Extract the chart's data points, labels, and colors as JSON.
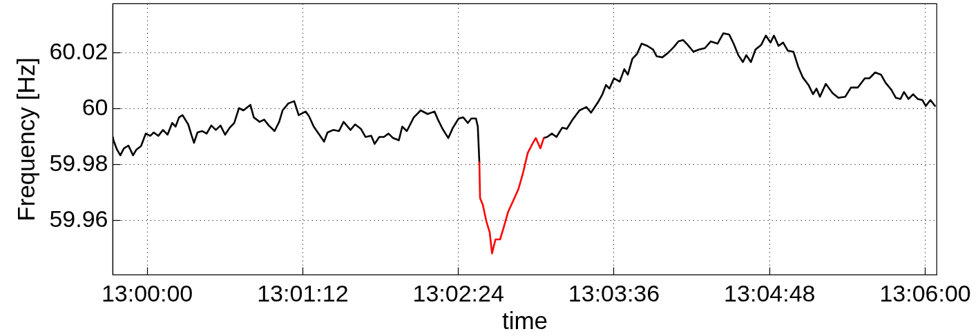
{
  "chart_data": {
    "type": "line",
    "xlabel": "time",
    "ylabel": "Frequency [Hz]",
    "x": [
      12.99563,
      12.99571,
      12.99616,
      12.9966,
      12.99705,
      12.99764,
      12.99823,
      12.99867,
      12.99926,
      12.99986,
      13.00044,
      13.00089,
      13.00148,
      13.00208,
      13.00266,
      13.00326,
      13.0037,
      13.00414,
      13.00459,
      13.00532,
      13.00577,
      13.00607,
      13.00651,
      13.0071,
      13.00769,
      13.00829,
      13.00887,
      13.00947,
      13.01006,
      13.01065,
      13.01124,
      13.01184,
      13.01242,
      13.01331,
      13.01375,
      13.0145,
      13.01508,
      13.01568,
      13.01642,
      13.01701,
      13.01745,
      13.01819,
      13.01894,
      13.01952,
      13.02041,
      13.02085,
      13.02145,
      13.02218,
      13.02278,
      13.02322,
      13.02396,
      13.0247,
      13.02529,
      13.02618,
      13.02677,
      13.02751,
      13.0281,
      13.02884,
      13.02928,
      13.02988,
      13.03047,
      13.03106,
      13.03165,
      13.03239,
      13.03283,
      13.03342,
      13.03431,
      13.0352,
      13.03609,
      13.03697,
      13.03742,
      13.03801,
      13.03875,
      13.03934,
      13.04008,
      13.04067,
      13.04126,
      13.0417,
      13.0423,
      13.04254,
      13.04274,
      13.04283,
      13.04318,
      13.04363,
      13.04407,
      13.04437,
      13.04481,
      13.0454,
      13.04585,
      13.04644,
      13.04718,
      13.04777,
      13.04836,
      13.04895,
      13.04955,
      13.04999,
      13.05058,
      13.05102,
      13.05146,
      13.05206,
      13.05265,
      13.05339,
      13.05398,
      13.05472,
      13.05561,
      13.05649,
      13.05709,
      13.05798,
      13.05856,
      13.05901,
      13.05945,
      13.06004,
      13.06078,
      13.06137,
      13.06182,
      13.06241,
      13.063,
      13.06359,
      13.06433,
      13.06507,
      13.06552,
      13.06625,
      13.06699,
      13.06774,
      13.06832,
      13.06892,
      13.06951,
      13.07025,
      13.07098,
      13.07173,
      13.07247,
      13.07335,
      13.07409,
      13.07484,
      13.07542,
      13.07602,
      13.07661,
      13.07705,
      13.07764,
      13.07823,
      13.07897,
      13.07956,
      13.08016,
      13.0806,
      13.08119,
      13.08178,
      13.08238,
      13.08311,
      13.08371,
      13.08429,
      13.08504,
      13.08562,
      13.08607,
      13.08651,
      13.08726,
      13.08814,
      13.08888,
      13.08977,
      13.0905,
      13.09139,
      13.09228,
      13.09287,
      13.09361,
      13.09436,
      13.09494,
      13.09569,
      13.09627,
      13.09687,
      13.09731,
      13.0979,
      13.09849,
      13.09908,
      13.09968,
      13.10012,
      13.10071,
      13.1013
    ],
    "series": [
      {
        "color": "#000000",
        "values": [
          59.9897,
          59.9885,
          59.9852,
          59.9831,
          59.9856,
          59.9866,
          59.9831,
          59.9852,
          59.9864,
          59.9909,
          59.9901,
          59.9913,
          59.9901,
          59.9922,
          59.9905,
          59.9947,
          59.9934,
          59.9967,
          59.9975,
          59.9942,
          59.9901,
          59.9876,
          59.9913,
          59.9918,
          59.9909,
          59.9938,
          59.9922,
          59.9938,
          59.9905,
          59.993,
          59.9947,
          60.0,
          59.9992,
          60.0012,
          59.9967,
          59.9951,
          59.9959,
          59.9938,
          59.9918,
          59.9951,
          59.9992,
          60.0017,
          60.0025,
          59.9975,
          59.9988,
          59.9971,
          59.9934,
          59.9905,
          59.988,
          59.9913,
          59.9922,
          59.9918,
          59.9951,
          59.9922,
          59.9942,
          59.9926,
          59.9897,
          59.9901,
          59.9872,
          59.9897,
          59.9897,
          59.9909,
          59.9893,
          59.9885,
          59.9934,
          59.9918,
          59.9967,
          59.9992,
          59.9979,
          59.9988,
          59.9959,
          59.9926,
          59.9893,
          59.993,
          59.9963,
          59.9967,
          59.9947,
          59.9963,
          59.9963,
          59.9934,
          59.9806,
          null,
          null,
          null,
          null,
          null,
          null,
          null,
          null,
          null,
          null,
          null,
          null,
          null,
          null,
          null,
          null,
          59.9893,
          59.9897,
          59.9909,
          59.9897,
          59.993,
          59.9926,
          59.9959,
          59.9992,
          60.0004,
          59.9984,
          60.0021,
          60.005,
          60.0083,
          60.007,
          60.0107,
          60.0095,
          60.014,
          60.012,
          60.0177,
          60.0194,
          60.0231,
          60.0223,
          60.021,
          60.0186,
          60.0182,
          60.0198,
          60.0219,
          60.0239,
          60.0244,
          60.0227,
          60.0202,
          60.021,
          60.0215,
          60.0239,
          60.0231,
          60.0268,
          60.0264,
          60.0231,
          60.019,
          60.0165,
          60.019,
          60.0165,
          60.021,
          60.0227,
          60.026,
          60.0235,
          60.026,
          60.0223,
          60.0235,
          60.0206,
          60.0202,
          60.0149,
          60.0111,
          60.0083,
          60.005,
          60.007,
          60.0041,
          60.0087,
          60.0054,
          60.0037,
          60.0041,
          60.0074,
          60.0074,
          60.0107,
          60.0107,
          60.0128,
          60.012,
          60.0091,
          60.0066,
          60.0037,
          60.0033,
          60.0058,
          60.0033,
          60.005,
          60.0033,
          60.0029,
          60.0008,
          60.0029,
          60.0008
        ]
      },
      {
        "color": "#ff0000",
        "x": [
          13.04274,
          13.04283,
          13.04318,
          13.04363,
          13.04407,
          13.04437,
          13.04481,
          13.0454,
          13.04585,
          13.04644,
          13.04718,
          13.04777,
          13.04836,
          13.04895,
          13.04955,
          13.04999,
          13.05058,
          13.05102
        ],
        "values": [
          59.9806,
          59.9678,
          59.9654,
          59.9596,
          59.9555,
          59.948,
          59.953,
          59.953,
          59.9571,
          59.9629,
          59.9674,
          59.9711,
          59.9769,
          59.9839,
          59.9872,
          59.9893,
          59.9856,
          59.9893
        ]
      }
    ],
    "xlim": [
      12.9956,
      13.1015
    ],
    "ylim": [
      59.9404,
      60.0375
    ],
    "xticks": [
      {
        "value": 13,
        "label": "13:00:00"
      },
      {
        "value": 13.02,
        "label": "13:01:12"
      },
      {
        "value": 13.04,
        "label": "13:02:24"
      },
      {
        "value": 13.06,
        "label": "13:03:36"
      },
      {
        "value": 13.08,
        "label": "13:04:48"
      },
      {
        "value": 13.1,
        "label": "13:06:00"
      }
    ],
    "yticks": [
      59.96,
      59.98,
      60,
      60.02
    ],
    "grid": true
  }
}
